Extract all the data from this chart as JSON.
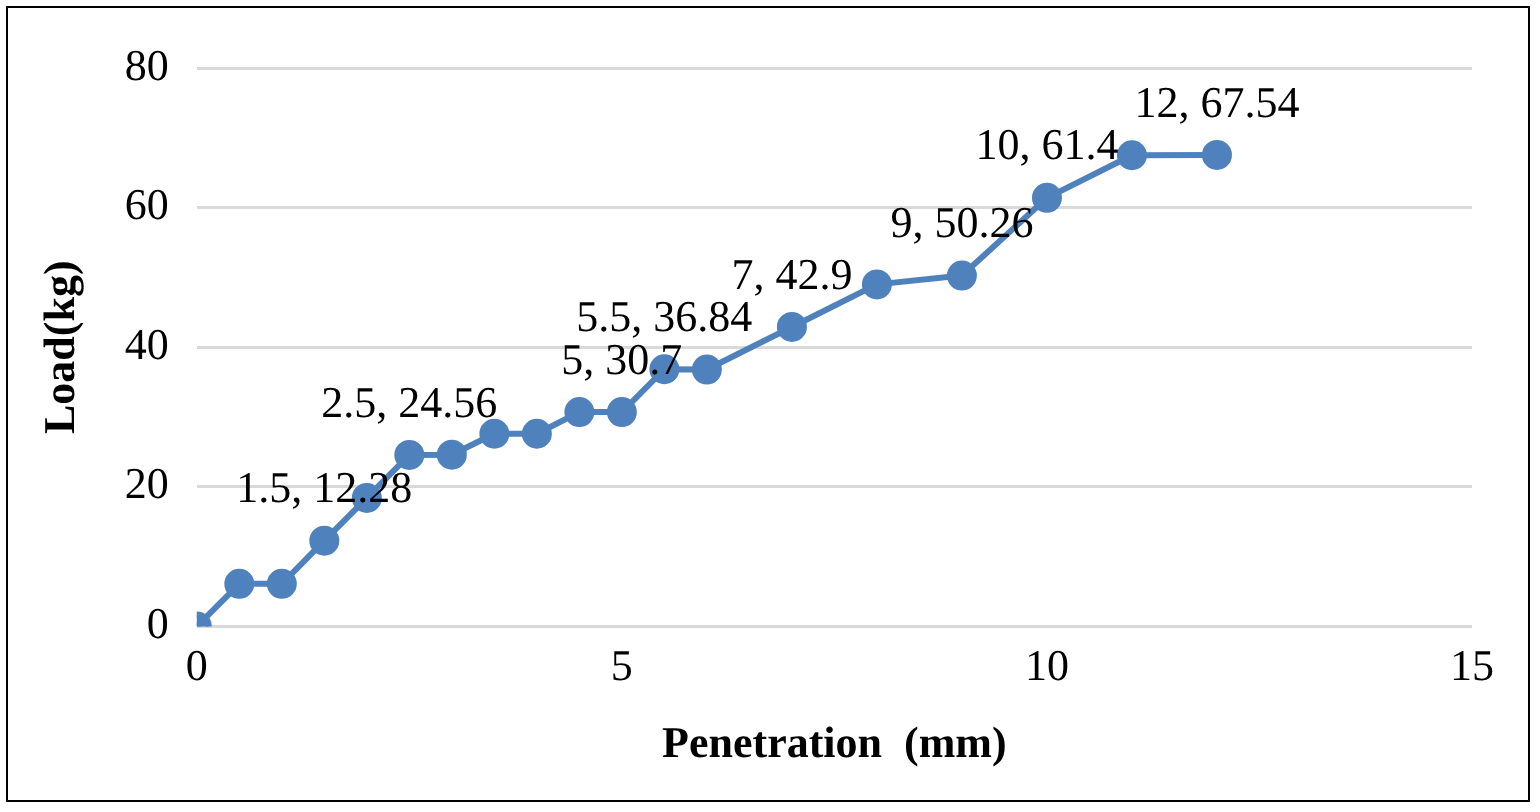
{
  "chart_data": {
    "type": "line",
    "xlabel": "Penetration  (mm)",
    "ylabel": "Load(kg)",
    "x": [
      0,
      0.5,
      1,
      1.5,
      2,
      2.5,
      3,
      3.5,
      4,
      4.5,
      5,
      5.5,
      6,
      7,
      8,
      9,
      10,
      11,
      12
    ],
    "series": [
      {
        "color": "#4f81bd",
        "values": [
          0,
          6.1,
          6.1,
          12.28,
          18.4,
          24.56,
          24.6,
          27.6,
          27.6,
          30.7,
          30.7,
          36.84,
          36.8,
          42.9,
          49,
          50.26,
          61.4,
          67.5,
          67.54
        ],
        "value_labels": [
          null,
          null,
          null,
          "1.5, 12.28",
          null,
          "2.5, 24.56",
          null,
          null,
          null,
          null,
          "5, 30.7",
          "5.5, 36.84",
          null,
          "7, 42.9",
          null,
          "9, 50.26",
          "10, 61.4",
          null,
          "12, 67.54"
        ]
      }
    ],
    "xlim": [
      0,
      15
    ],
    "xticks": [
      0,
      5,
      10,
      15
    ],
    "ylim": [
      0,
      80
    ],
    "yticks": [
      0,
      20,
      40,
      60,
      80
    ],
    "grid": "y",
    "legend": false,
    "marker": "circle",
    "line_style": "solid"
  }
}
